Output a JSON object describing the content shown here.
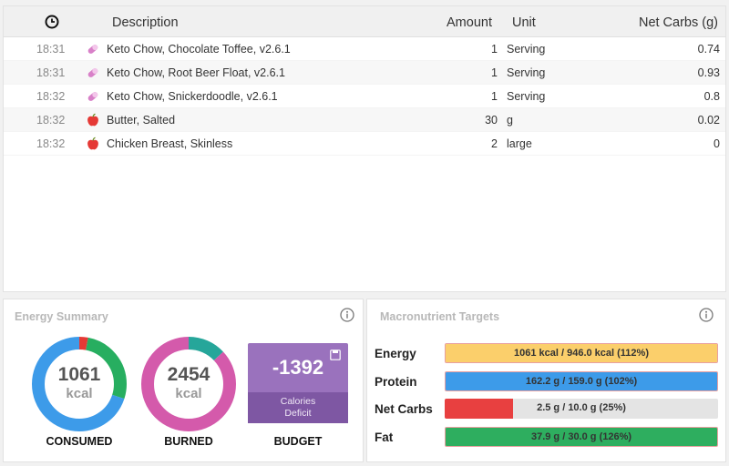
{
  "diary": {
    "columns": {
      "time_icon": "clock-icon",
      "description": "Description",
      "amount": "Amount",
      "unit": "Unit",
      "net_carbs": "Net Carbs (g)"
    },
    "entries": [
      {
        "time": "18:31",
        "icon": "supplement-icon",
        "description": "Keto Chow, Chocolate Toffee, v2.6.1",
        "amount": "1",
        "unit": "Serving",
        "net_carbs": "0.74"
      },
      {
        "time": "18:31",
        "icon": "supplement-icon",
        "description": "Keto Chow, Root Beer Float, v2.6.1",
        "amount": "1",
        "unit": "Serving",
        "net_carbs": "0.93"
      },
      {
        "time": "18:32",
        "icon": "supplement-icon",
        "description": "Keto Chow, Snickerdoodle, v2.6.1",
        "amount": "1",
        "unit": "Serving",
        "net_carbs": "0.8"
      },
      {
        "time": "18:32",
        "icon": "apple-icon",
        "description": "Butter, Salted",
        "amount": "30",
        "unit": "g",
        "net_carbs": "0.02"
      },
      {
        "time": "18:32",
        "icon": "apple-icon",
        "description": "Chicken Breast, Skinless",
        "amount": "2",
        "unit": "large",
        "net_carbs": "0"
      }
    ]
  },
  "energy_summary": {
    "title": "Energy Summary",
    "info_icon": "info-icon",
    "consumed": {
      "value": "1061",
      "unit": "kcal",
      "label": "CONSUMED",
      "ring_segments": [
        0.03,
        0.27,
        0.7
      ],
      "ring_colors": [
        "#e53935",
        "#27ae60",
        "#3d9be9"
      ]
    },
    "burned": {
      "value": "2454",
      "unit": "kcal",
      "label": "BURNED",
      "ring_segments": [
        0.13,
        0.87
      ],
      "ring_colors": [
        "#26a69a",
        "#d45aab"
      ]
    },
    "budget": {
      "value": "-1392",
      "sub_line1": "Calories",
      "sub_line2": "Deficit",
      "label": "BUDGET",
      "icon": "save-icon"
    }
  },
  "macro_targets": {
    "title": "Macronutrient Targets",
    "info_icon": "info-icon",
    "rows": [
      {
        "label": "Energy",
        "text": "1061 kcal / 946.0 kcal (112%)",
        "fill": 1.0,
        "color": "#fbcf6b",
        "over": true
      },
      {
        "label": "Protein",
        "text": "162.2 g / 159.0 g (102%)",
        "fill": 1.0,
        "color": "#3d9be9",
        "over": true
      },
      {
        "label": "Net Carbs",
        "text": "2.5 g / 10.0 g (25%)",
        "fill": 0.25,
        "color": "#e84040",
        "over": false
      },
      {
        "label": "Fat",
        "text": "37.9 g / 30.0 g (126%)",
        "fill": 1.0,
        "color": "#2eae5f",
        "over": true
      }
    ]
  }
}
